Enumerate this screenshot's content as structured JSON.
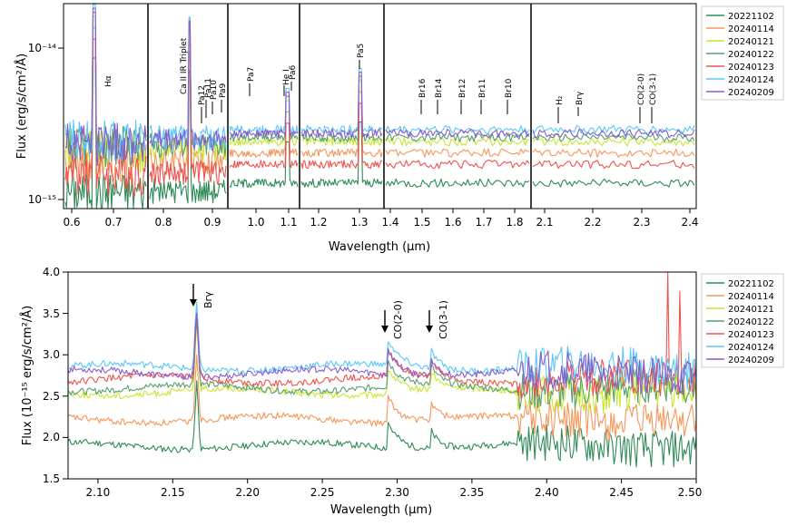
{
  "chart_data": [
    {
      "type": "line",
      "title": "",
      "xlabel": "Wavelength (μm)",
      "ylabel": "Flux (erg/s/cm²/Å)",
      "yscale": "log",
      "ylim": [
        9e-16,
        1.7e-14
      ],
      "ytick_labels": [
        "10⁻¹⁵",
        "10⁻¹⁴"
      ],
      "xtick_labels": [
        "0.6",
        "0.7",
        "0.8",
        "0.9",
        "1.0",
        "1.1",
        "1.2",
        "1.3",
        "1.4",
        "1.5",
        "1.6",
        "1.7",
        "1.8",
        "2.1",
        "2.2",
        "2.3",
        "2.4"
      ],
      "segments": [
        {
          "xmin": 0.6,
          "xmax": 0.76
        },
        {
          "xmin": 0.76,
          "xmax": 0.94
        },
        {
          "xmin": 0.94,
          "xmax": 1.11
        },
        {
          "xmin": 1.11,
          "xmax": 1.35
        },
        {
          "xmin": 1.35,
          "xmax": 1.8
        },
        {
          "xmin": 2.04,
          "xmax": 2.4
        }
      ],
      "legend": [
        "20221102",
        "20240114",
        "20240121",
        "20240122",
        "20240123",
        "20240124",
        "20240209"
      ],
      "legend_position": "right",
      "annotations": [
        "Hα",
        "Ca II IR Triplet",
        "Pa12",
        "Pa11",
        "Pa10",
        "Pa9",
        "Pa7",
        "He I",
        "Pa6",
        "Pa5",
        "Br16",
        "Br14",
        "Br12",
        "Br11",
        "Br10",
        "H₂",
        "Brγ",
        "CO(2-0)",
        "CO(3-1)"
      ],
      "series": [
        {
          "name": "20221102",
          "color": "#2e8b57",
          "level": 1.3e-15
        },
        {
          "name": "20240114",
          "color": "#f5975a",
          "level": 2e-15
        },
        {
          "name": "20240121",
          "color": "#c8e62e",
          "level": 2.35e-15
        },
        {
          "name": "20240122",
          "color": "#5a9e72",
          "level": 2.5e-15
        },
        {
          "name": "20240123",
          "color": "#ef5350",
          "level": 1.7e-15
        },
        {
          "name": "20240124",
          "color": "#5ac8fa",
          "level": 2.8e-15
        },
        {
          "name": "20240209",
          "color": "#8a5cc8",
          "level": 2.65e-15
        }
      ]
    },
    {
      "type": "line",
      "title": "",
      "xlabel": "Wavelength (μm)",
      "ylabel": "Flux (10⁻¹⁵ erg/s/cm²/Å)",
      "xlim": [
        2.08,
        2.5
      ],
      "ylim": [
        1.5,
        4.0
      ],
      "xticks": [
        2.1,
        2.15,
        2.2,
        2.25,
        2.3,
        2.35,
        2.4,
        2.45,
        2.5
      ],
      "yticks": [
        1.5,
        2.0,
        2.5,
        3.0,
        3.5,
        4.0
      ],
      "xtick_labels": [
        "2.10",
        "2.15",
        "2.20",
        "2.25",
        "2.30",
        "2.35",
        "2.40",
        "2.45",
        "2.50"
      ],
      "ytick_labels": [
        "1.5",
        "2.0",
        "2.5",
        "3.0",
        "3.5",
        "4.0"
      ],
      "legend": [
        "20221102",
        "20240114",
        "20240121",
        "20240122",
        "20240123",
        "20240124",
        "20240209"
      ],
      "legend_position": "right",
      "annotations": [
        {
          "label": "Brγ",
          "x": 2.166
        },
        {
          "label": "CO(2-0)",
          "x": 2.294
        },
        {
          "label": "CO(3-1)",
          "x": 2.323
        }
      ],
      "series": [
        {
          "name": "20221102",
          "color": "#2e8b57",
          "level": 1.9
        },
        {
          "name": "20240114",
          "color": "#f5975a",
          "level": 2.22
        },
        {
          "name": "20240121",
          "color": "#c8e62e",
          "level": 2.55
        },
        {
          "name": "20240122",
          "color": "#5a9e72",
          "level": 2.6
        },
        {
          "name": "20240123",
          "color": "#ef5350",
          "level": 2.7
        },
        {
          "name": "20240124",
          "color": "#5ac8fa",
          "level": 2.85
        },
        {
          "name": "20240209",
          "color": "#8a5cc8",
          "level": 2.78
        }
      ]
    }
  ]
}
